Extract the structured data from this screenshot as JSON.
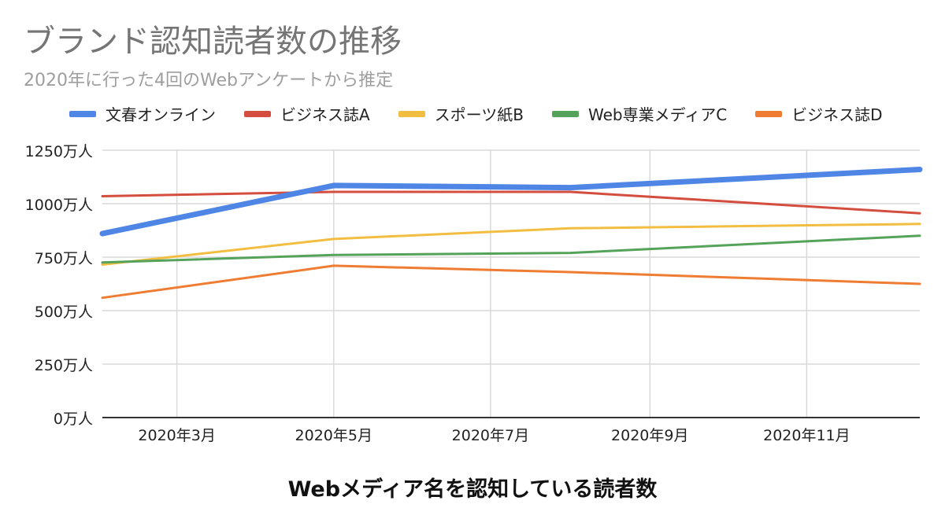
{
  "chart_data": {
    "type": "line",
    "title": "ブランド認知読者数の推移",
    "subtitle": "2020年に行った4回のWebアンケートから推定",
    "xlabel": "Webメディア名を認知している読者数",
    "ylabel": "",
    "x_ticks": [
      "2020年3月",
      "2020年5月",
      "2020年7月",
      "2020年9月",
      "2020年11月"
    ],
    "y_ticks": [
      "0万人",
      "250万人",
      "500万人",
      "750万人",
      "1000万人",
      "1250万人"
    ],
    "ylim": [
      0,
      1250
    ],
    "x_domain": [
      "2020-02-01",
      "2020-12-15"
    ],
    "grid": true,
    "legend_position": "top",
    "series": [
      {
        "name": "文春オンライン",
        "color": "#4f86e5",
        "width": 7,
        "x": [
          "2020-02-01",
          "2020-05-01",
          "2020-08-01",
          "2020-12-15"
        ],
        "values": [
          860,
          1085,
          1075,
          1160
        ]
      },
      {
        "name": "ビジネス誌A",
        "color": "#d44e3f",
        "width": 3,
        "x": [
          "2020-02-01",
          "2020-05-01",
          "2020-08-01",
          "2020-12-15"
        ],
        "values": [
          1035,
          1055,
          1055,
          955
        ]
      },
      {
        "name": "スポーツ紙B",
        "color": "#f2be42",
        "width": 3,
        "x": [
          "2020-02-01",
          "2020-05-01",
          "2020-08-01",
          "2020-12-15"
        ],
        "values": [
          715,
          835,
          885,
          905
        ]
      },
      {
        "name": "Web専業メディアC",
        "color": "#55a35a",
        "width": 3,
        "x": [
          "2020-02-01",
          "2020-05-01",
          "2020-08-01",
          "2020-12-15"
        ],
        "values": [
          725,
          760,
          770,
          850
        ]
      },
      {
        "name": "ビジネス誌D",
        "color": "#ee7d33",
        "width": 3,
        "x": [
          "2020-02-01",
          "2020-05-01",
          "2020-08-01",
          "2020-12-15"
        ],
        "values": [
          560,
          710,
          680,
          625
        ]
      }
    ]
  }
}
